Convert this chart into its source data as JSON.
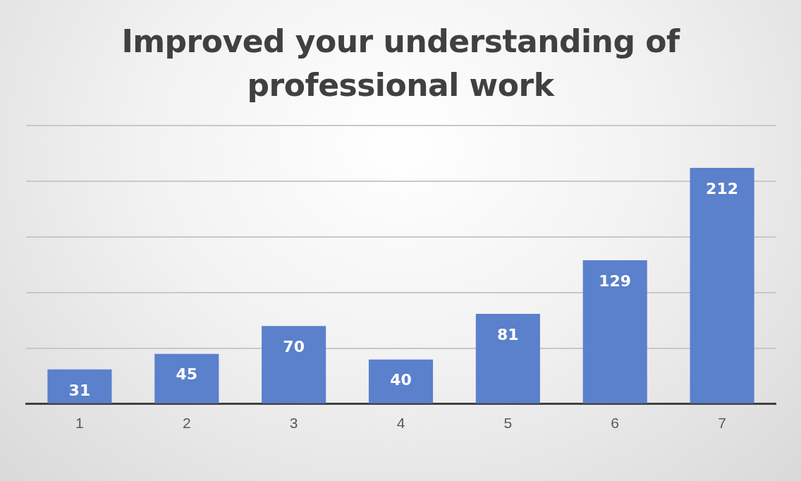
{
  "chart_data": {
    "type": "bar",
    "title": "Improved your understanding of professional work",
    "categories": [
      "1",
      "2",
      "3",
      "4",
      "5",
      "6",
      "7"
    ],
    "values": [
      31,
      45,
      70,
      40,
      81,
      129,
      212
    ],
    "color": "#5b80cc",
    "tick_labels": "x",
    "grid": "y",
    "data_labels": true,
    "legend": false
  }
}
